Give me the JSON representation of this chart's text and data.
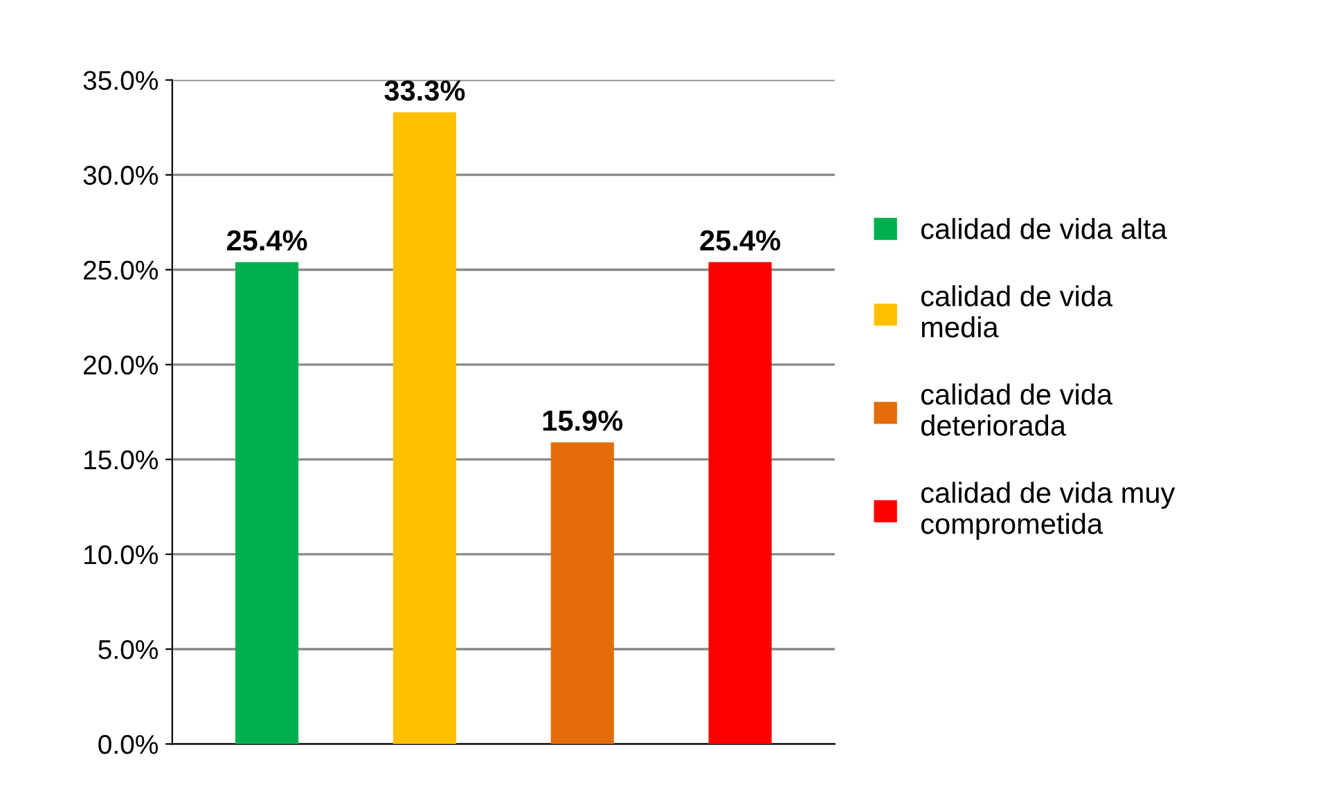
{
  "chart_data": {
    "type": "bar",
    "categories": [
      null,
      null,
      null,
      null
    ],
    "series": [
      {
        "name": "calidad de vida alta",
        "color": "#00b050",
        "values": [
          25.4,
          null,
          null,
          null
        ],
        "value_labels": [
          "25.4%",
          null,
          null,
          null
        ]
      },
      {
        "name": "calidad de vida media",
        "color": "#ffc000",
        "values": [
          null,
          33.3,
          null,
          null
        ],
        "value_labels": [
          null,
          "33.3%",
          null,
          null
        ]
      },
      {
        "name": "calidad de vida deteriorada",
        "color": "#e46c0a",
        "values": [
          null,
          null,
          15.9,
          null
        ],
        "value_labels": [
          null,
          null,
          "15.9%",
          null
        ]
      },
      {
        "name": "calidad de vida muy comprometida",
        "color": "#ff0000",
        "values": [
          null,
          null,
          null,
          25.4
        ],
        "value_labels": [
          null,
          null,
          null,
          "25.4%"
        ]
      }
    ],
    "ylim": [
      0,
      35
    ],
    "yticks": [
      {
        "value": 0,
        "label": "0.0%"
      },
      {
        "value": 5,
        "label": "5.0%"
      },
      {
        "value": 10,
        "label": "10.0%"
      },
      {
        "value": 15,
        "label": "15.0%"
      },
      {
        "value": 20,
        "label": "20.0%"
      },
      {
        "value": 25,
        "label": "25.0%"
      },
      {
        "value": 30,
        "label": "30.0%"
      },
      {
        "value": 35,
        "label": "35.0%"
      }
    ],
    "grid": "y",
    "legend": "right"
  }
}
